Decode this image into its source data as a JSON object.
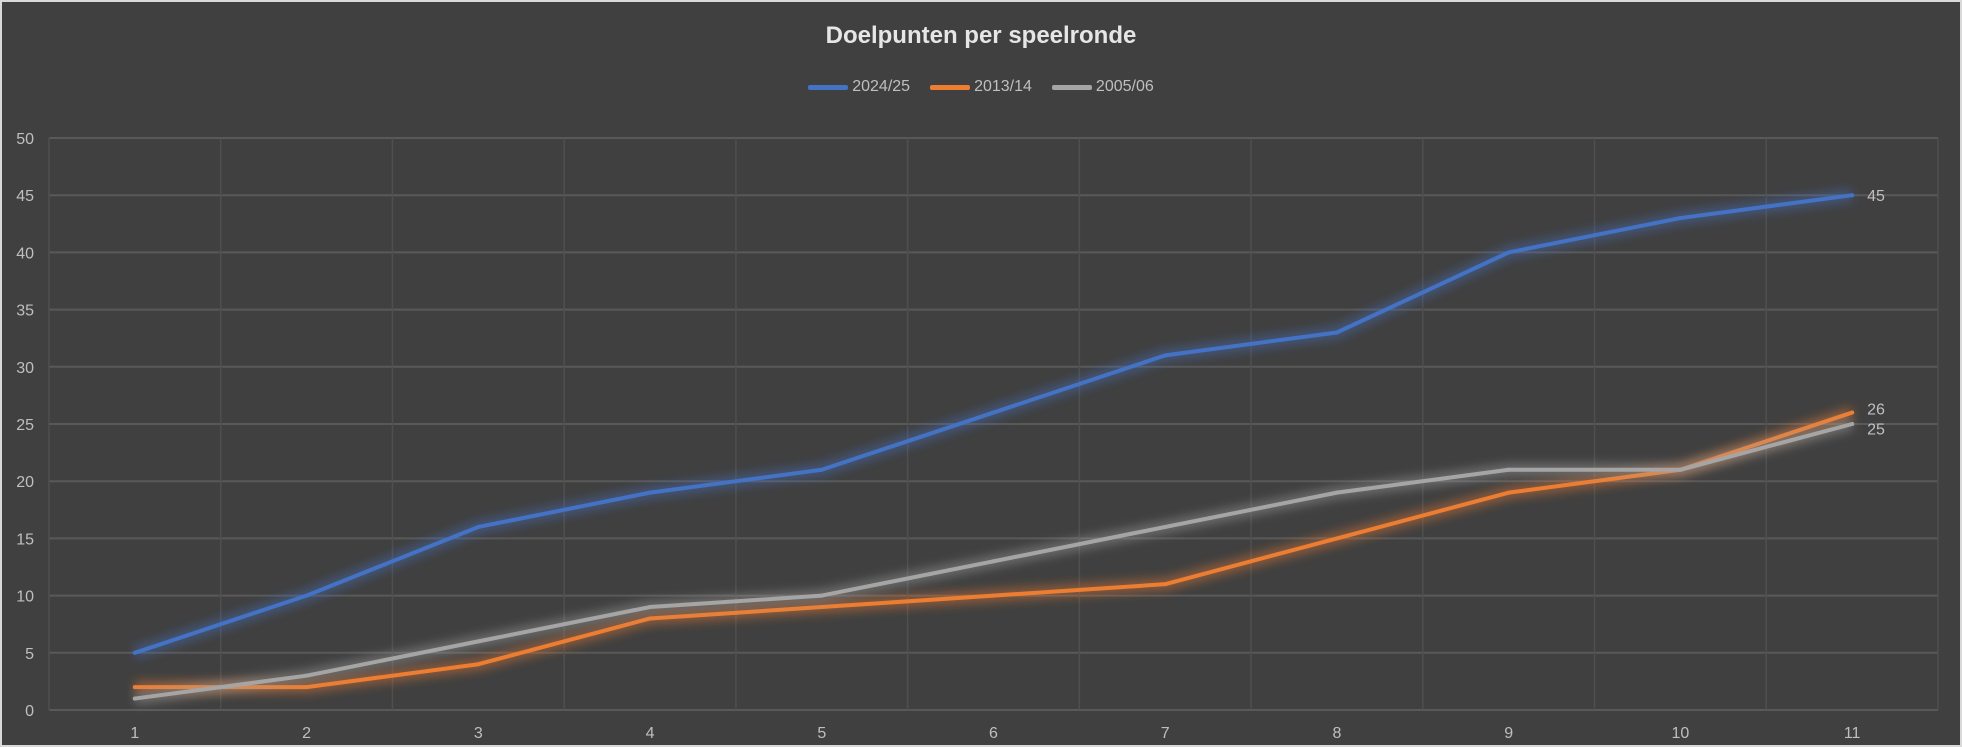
{
  "chart_data": {
    "type": "line",
    "title": "Doelpunten per speelronde",
    "xlabel": "",
    "ylabel": "",
    "categories": [
      "1",
      "2",
      "3",
      "4",
      "5",
      "6",
      "7",
      "8",
      "9",
      "10",
      "11"
    ],
    "ylim": [
      0,
      50
    ],
    "yticks": [
      "0",
      "5",
      "10",
      "15",
      "20",
      "25",
      "30",
      "35",
      "40",
      "45",
      "50"
    ],
    "grid": true,
    "legend_position": "top",
    "series": [
      {
        "name": "2024/25",
        "color": "#4472c4",
        "values": [
          5,
          10,
          16,
          19,
          21,
          26,
          31,
          33,
          40,
          43,
          45
        ],
        "end_label": "45"
      },
      {
        "name": "2013/14",
        "color": "#ed7d31",
        "values": [
          2,
          2,
          4,
          8,
          9,
          10,
          11,
          15,
          19,
          21,
          26
        ],
        "end_label": "26"
      },
      {
        "name": "2005/06",
        "color": "#a5a5a5",
        "values": [
          1,
          3,
          6,
          9,
          10,
          13,
          16,
          19,
          21,
          21,
          25
        ],
        "end_label": "25"
      }
    ]
  }
}
